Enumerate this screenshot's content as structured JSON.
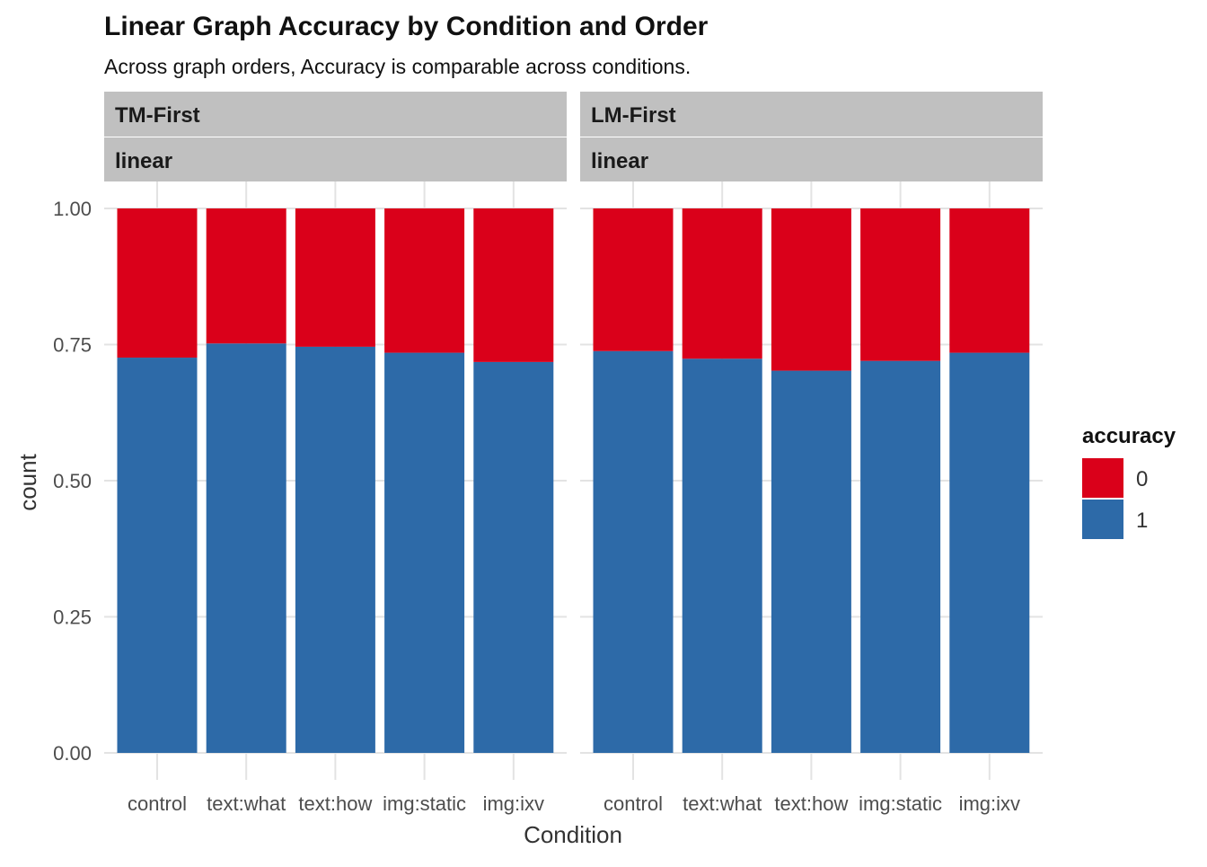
{
  "chart_data": {
    "type": "bar",
    "stacked": true,
    "position": "fill",
    "title": "Linear Graph Accuracy by Condition and Order",
    "subtitle": "Across graph orders, Accuracy is comparable across conditions.",
    "xlabel": "Condition",
    "ylabel": "count",
    "ylim": [
      0,
      1
    ],
    "y_ticks": [
      "0.00",
      "0.25",
      "0.50",
      "0.75",
      "1.00"
    ],
    "y_tick_values": [
      0,
      0.25,
      0.5,
      0.75,
      1.0
    ],
    "categories": [
      "control",
      "text:what",
      "text:how",
      "img:static",
      "img:ixv"
    ],
    "grid": true,
    "legend": {
      "title": "accuracy",
      "placement": "right",
      "entries": [
        {
          "label": "0",
          "color": "#DA001A"
        },
        {
          "label": "1",
          "color": "#2D6AA8"
        }
      ]
    },
    "facets": [
      {
        "strip_top": "TM-First",
        "strip_bottom": "linear",
        "series": [
          {
            "name": "1",
            "color": "#2D6AA8",
            "values": [
              0.726,
              0.752,
              0.746,
              0.735,
              0.718
            ]
          },
          {
            "name": "0",
            "color": "#DA001A",
            "values": [
              0.274,
              0.248,
              0.254,
              0.265,
              0.282
            ]
          }
        ]
      },
      {
        "strip_top": "LM-First",
        "strip_bottom": "linear",
        "series": [
          {
            "name": "1",
            "color": "#2D6AA8",
            "values": [
              0.738,
              0.724,
              0.702,
              0.72,
              0.735
            ]
          },
          {
            "name": "0",
            "color": "#DA001A",
            "values": [
              0.262,
              0.276,
              0.298,
              0.28,
              0.265
            ]
          }
        ]
      }
    ]
  }
}
